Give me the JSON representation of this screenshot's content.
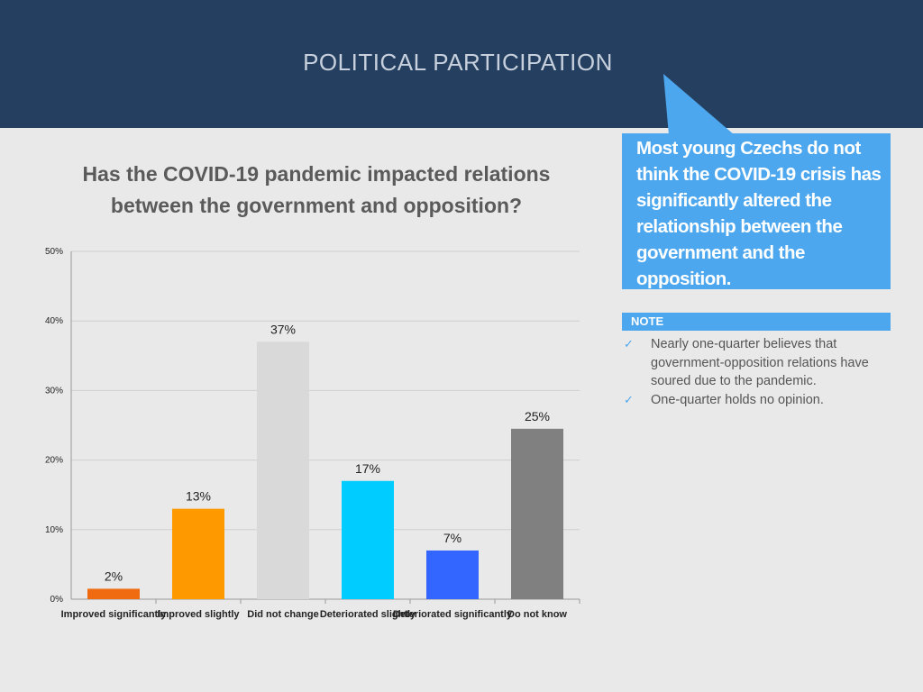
{
  "header": {
    "title": "POLITICAL PARTICIPATION"
  },
  "callout": {
    "text": "Most young Czechs do not think the COVID-19 crisis has significantly altered the relationship between the government and the opposition."
  },
  "question": {
    "text": "Has the COVID-19 pandemic impacted relations between the government and opposition?"
  },
  "note": {
    "label": "NOTE",
    "items": [
      "Nearly one-quarter believes that government-opposition relations have soured due to the pandemic.",
      "One-quarter holds no opinion."
    ]
  },
  "colors": {
    "header_bg": "#243f60",
    "accent": "#4da7ee",
    "bar_colors": [
      "#f06a0f",
      "#ff9900",
      "#d9d9d9",
      "#00ccff",
      "#3366ff",
      "#808080"
    ]
  },
  "chart_data": {
    "type": "bar",
    "title": "",
    "xlabel": "",
    "ylabel": "",
    "categories": [
      "Improved significantly",
      "Improved slightly",
      "Did not change",
      "Deteriorated slightly",
      "Deteriorated significantly",
      "Do not know"
    ],
    "values": [
      1.5,
      13,
      37,
      17,
      7,
      24.5
    ],
    "data_labels": [
      "2%",
      "13%",
      "37%",
      "17%",
      "7%",
      "25%"
    ],
    "ylim": [
      0,
      50
    ],
    "yticks": [
      "0%",
      "10%",
      "20%",
      "30%",
      "40%",
      "50%"
    ],
    "grid": true
  }
}
